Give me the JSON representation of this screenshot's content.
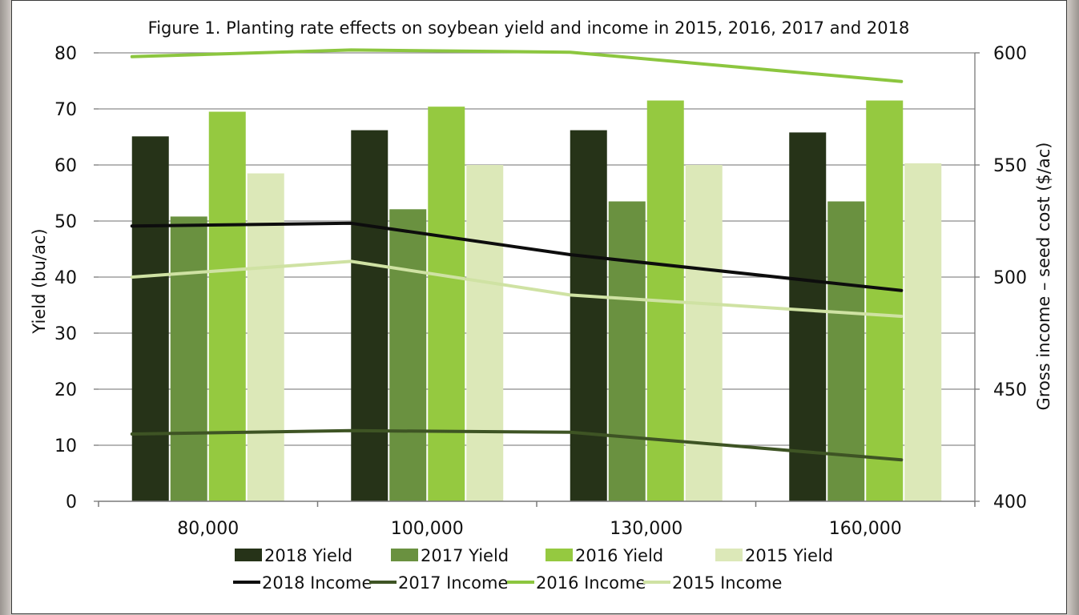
{
  "chart_data": {
    "type": "bar",
    "title": "Figure 1. Planting rate effects on soybean yield and income in 2015, 2016, 2017 and 2018",
    "xlabel": "",
    "ylabel": "Yield (bu/ac)",
    "y2label": "Gross income – seed cost ($/ac)",
    "categories": [
      "80,000",
      "100,000",
      "130,000",
      "160,000"
    ],
    "ylim": [
      0,
      80
    ],
    "yticks": [
      "0",
      "10",
      "20",
      "30",
      "40",
      "50",
      "60",
      "70",
      "80"
    ],
    "y2lim": [
      400,
      600
    ],
    "y2ticks": [
      "400",
      "450",
      "500",
      "550",
      "600"
    ],
    "grid": true,
    "legend_position": "bottom",
    "series": [
      {
        "name": "2018 Yield",
        "kind": "bar",
        "axis": "left",
        "color": "#263318",
        "values": [
          65.1,
          66.2,
          66.2,
          65.8
        ]
      },
      {
        "name": "2017 Yield",
        "kind": "bar",
        "axis": "left",
        "color": "#6a9140",
        "values": [
          50.8,
          52.1,
          53.5,
          53.5
        ]
      },
      {
        "name": "2016 Yield",
        "kind": "bar",
        "axis": "left",
        "color": "#95c940",
        "values": [
          69.5,
          70.4,
          71.5,
          71.5
        ]
      },
      {
        "name": "2015 Yield",
        "kind": "bar",
        "axis": "left",
        "color": "#dce8b8",
        "values": [
          58.5,
          60.0,
          60.0,
          60.3
        ]
      },
      {
        "name": "2018 Income",
        "kind": "line",
        "axis": "right",
        "color": "#0d0d0d",
        "values": [
          522.8,
          524,
          510,
          494
        ]
      },
      {
        "name": "2017 Income",
        "kind": "line",
        "axis": "right",
        "color": "#3e5424",
        "values": [
          430,
          431.5,
          430.8,
          418.5
        ]
      },
      {
        "name": "2016 Income",
        "kind": "line",
        "axis": "right",
        "color": "#8cc63f",
        "values": [
          598.3,
          601.3,
          600.3,
          587.2
        ]
      },
      {
        "name": "2015 Income",
        "kind": "line",
        "axis": "right",
        "color": "#cfe2a3",
        "values": [
          500,
          507,
          492,
          482.5
        ]
      }
    ]
  }
}
